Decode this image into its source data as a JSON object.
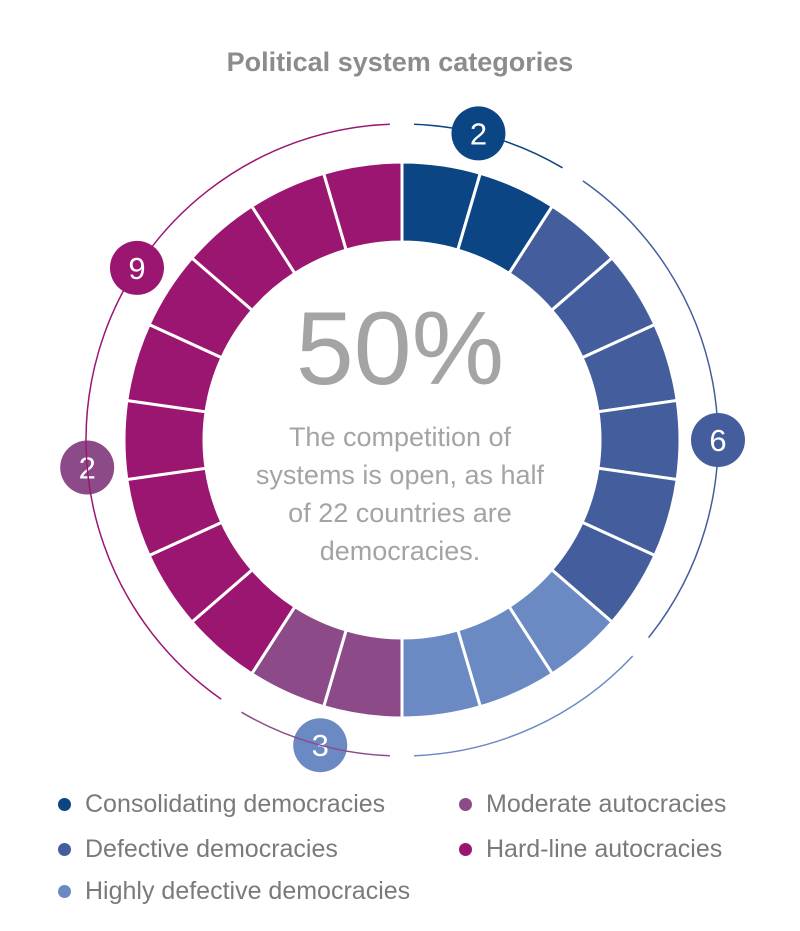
{
  "chart_data": {
    "type": "pie",
    "title": "Political system categories",
    "center_value": "50%",
    "center_text_lines": [
      "The competition of",
      "systems is open, as half",
      "of 22 countries are",
      "democracies."
    ],
    "categories": [
      "Consolidating democracies",
      "Defective democracies",
      "Highly defective democracies",
      "Moderate autocracies",
      "Hard-line autocracies"
    ],
    "values": [
      2,
      6,
      3,
      2,
      9
    ],
    "colors": [
      "#0c4583",
      "#445e9d",
      "#6b8ac3",
      "#8c4b88",
      "#9b1670"
    ],
    "total": 22
  }
}
